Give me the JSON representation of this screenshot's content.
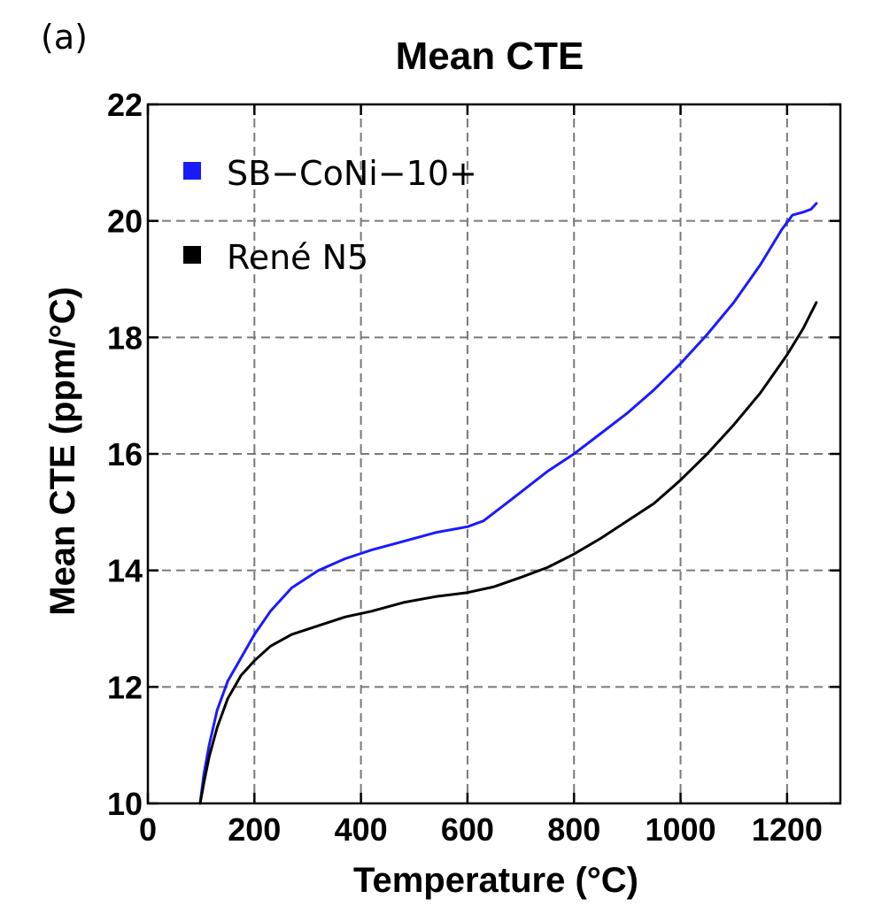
{
  "panel_label": "(a)",
  "chart_data": {
    "type": "line",
    "title": "Mean CTE",
    "xlabel": "Temperature (°C)",
    "ylabel": "Mean CTE (ppm/°C)",
    "xlim": [
      0,
      1300
    ],
    "ylim": [
      10,
      22
    ],
    "xticks": [
      0,
      200,
      400,
      600,
      800,
      1000,
      1200
    ],
    "yticks": [
      10,
      12,
      14,
      16,
      18,
      20,
      22
    ],
    "grid": true,
    "legend_position": "top-left",
    "series": [
      {
        "name": "SB−CoNi−10+",
        "color": "#1a1aff",
        "x": [
          98,
          105,
          115,
          130,
          150,
          175,
          200,
          230,
          270,
          320,
          370,
          420,
          480,
          540,
          600,
          630,
          680,
          750,
          800,
          850,
          900,
          950,
          1000,
          1050,
          1100,
          1150,
          1190,
          1210,
          1230,
          1245,
          1255
        ],
        "y": [
          10.0,
          10.5,
          11.0,
          11.6,
          12.1,
          12.5,
          12.9,
          13.3,
          13.7,
          14.0,
          14.2,
          14.35,
          14.5,
          14.65,
          14.75,
          14.85,
          15.2,
          15.7,
          16.0,
          16.35,
          16.7,
          17.1,
          17.55,
          18.05,
          18.6,
          19.25,
          19.85,
          20.1,
          20.15,
          20.2,
          20.3
        ]
      },
      {
        "name": "René N5",
        "color": "#000000",
        "x": [
          98,
          105,
          115,
          130,
          150,
          175,
          200,
          230,
          270,
          320,
          370,
          420,
          480,
          540,
          600,
          650,
          700,
          750,
          800,
          850,
          900,
          950,
          1000,
          1050,
          1100,
          1150,
          1200,
          1230,
          1255
        ],
        "y": [
          10.0,
          10.35,
          10.8,
          11.3,
          11.8,
          12.2,
          12.45,
          12.7,
          12.9,
          13.05,
          13.2,
          13.3,
          13.45,
          13.55,
          13.62,
          13.72,
          13.88,
          14.05,
          14.28,
          14.55,
          14.85,
          15.15,
          15.55,
          16.0,
          16.5,
          17.05,
          17.7,
          18.15,
          18.6
        ]
      }
    ]
  }
}
